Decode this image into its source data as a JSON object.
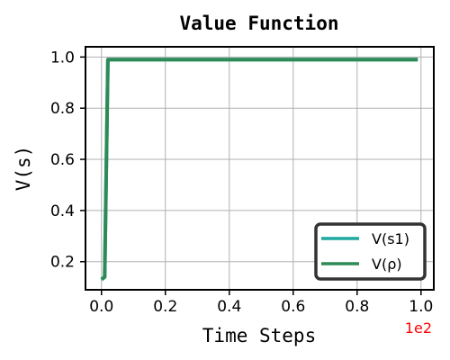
{
  "chart_data": {
    "type": "line",
    "title": "Value Function",
    "xlabel": "Time Steps",
    "ylabel": "V(s)",
    "x_offset_label": "1e2",
    "x_offset_color": "#ff0000",
    "xlim": [
      -0.05,
      1.04
    ],
    "ylim": [
      0.09,
      1.04
    ],
    "x_ticks": [
      0.0,
      0.2,
      0.4,
      0.6,
      0.8,
      1.0
    ],
    "x_tick_labels": [
      "0.0",
      "0.2",
      "0.4",
      "0.6",
      "0.8",
      "1.0"
    ],
    "y_ticks": [
      0.2,
      0.4,
      0.6,
      0.8,
      1.0
    ],
    "y_tick_labels": [
      "0.2",
      "0.4",
      "0.6",
      "0.8",
      "1.0"
    ],
    "grid": true,
    "legend_position": "lower-right",
    "series": [
      {
        "name": "V(s1)",
        "color": "#20a8a0",
        "x": [
          0.0,
          0.01,
          0.02,
          0.99
        ],
        "y": [
          0.13,
          0.14,
          0.99,
          0.99
        ]
      },
      {
        "name": "V(ρ)",
        "color": "#2e8b57",
        "x": [
          0.0,
          0.01,
          0.02,
          0.99
        ],
        "y": [
          0.13,
          0.14,
          0.99,
          0.99
        ]
      }
    ]
  }
}
